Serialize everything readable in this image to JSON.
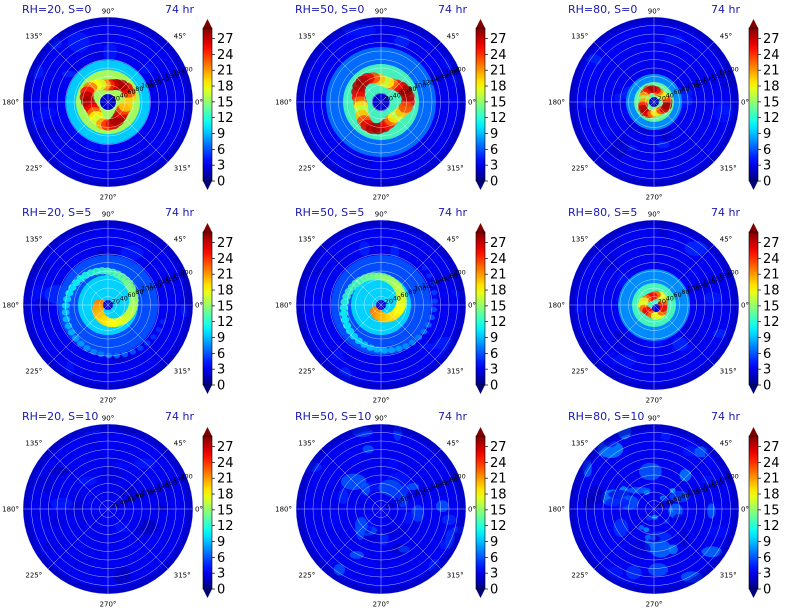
{
  "chart_data": {
    "type": "heatmap",
    "description_grid": "3x3 panels of polar field plots",
    "time_label": "74 hr",
    "angle_labels": [
      "90°",
      "45°",
      "0°",
      "315°",
      "270°",
      "225°",
      "180°",
      "135°"
    ],
    "radial_labels": [
      "20",
      "40",
      "60",
      "80",
      "100",
      "120",
      "140",
      "160",
      "180",
      "200"
    ],
    "colorbar": {
      "ticks": [
        "0",
        "3",
        "6",
        "9",
        "12",
        "15",
        "18",
        "21",
        "24",
        "27"
      ],
      "vmin": 0,
      "vmax": 29,
      "extend": "both",
      "colormap": "jet"
    },
    "panels": [
      {
        "title": "RH=20, S=0",
        "rh": 20,
        "s": 0,
        "pattern": "tight-ring",
        "peak": 28
      },
      {
        "title": "RH=50, S=0",
        "rh": 50,
        "s": 0,
        "pattern": "broad-ring",
        "peak": 28
      },
      {
        "title": "RH=80, S=0",
        "rh": 80,
        "s": 0,
        "pattern": "small-ring",
        "peak": 28
      },
      {
        "title": "RH=20, S=5",
        "rh": 20,
        "s": 5,
        "pattern": "spiral",
        "peak": 22
      },
      {
        "title": "RH=50, S=5",
        "rh": 50,
        "s": 5,
        "pattern": "spiral",
        "peak": 22
      },
      {
        "title": "RH=80, S=5",
        "rh": 80,
        "s": 5,
        "pattern": "asym-core",
        "peak": 26
      },
      {
        "title": "RH=20, S=10",
        "rh": 20,
        "s": 10,
        "pattern": "weak",
        "peak": 4
      },
      {
        "title": "RH=50, S=10",
        "rh": 50,
        "s": 10,
        "pattern": "weak",
        "peak": 6
      },
      {
        "title": "RH=80, S=10",
        "rh": 80,
        "s": 10,
        "pattern": "weak-core",
        "peak": 8
      }
    ]
  }
}
